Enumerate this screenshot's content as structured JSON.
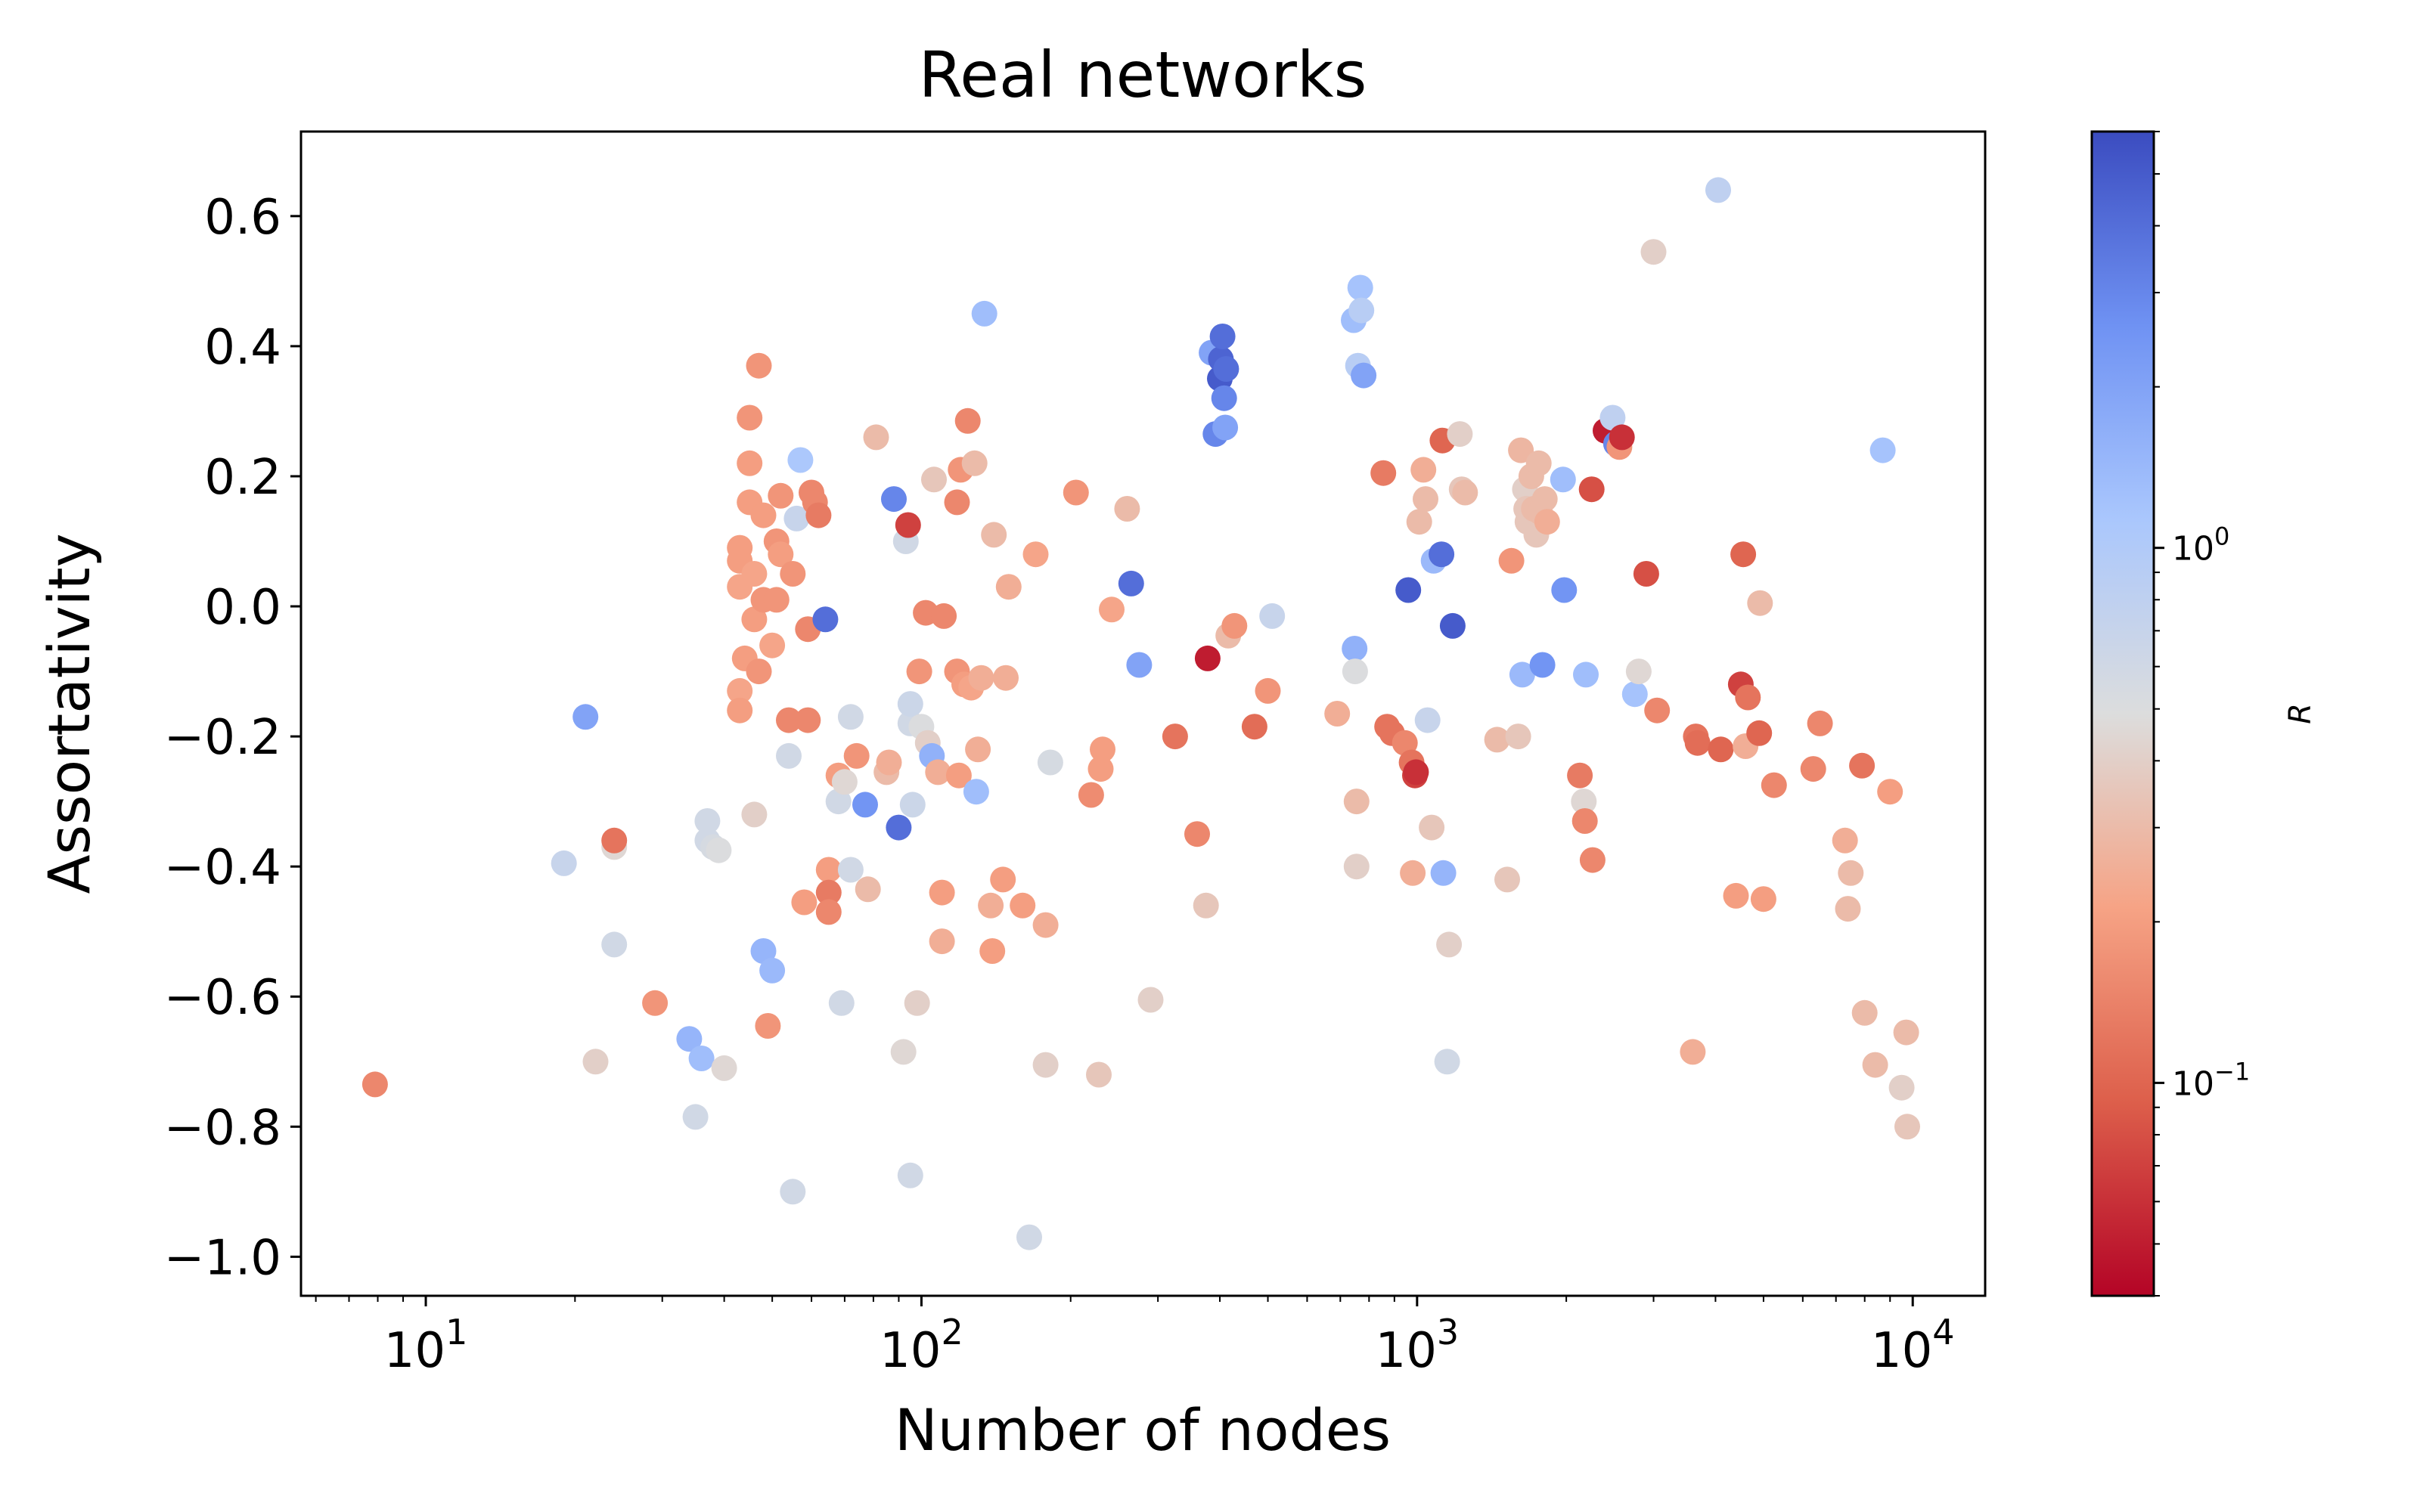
{
  "chart_data": {
    "type": "scatter",
    "title": "Real networks",
    "xlabel": "Number of nodes",
    "ylabel": "Assortativity",
    "x_scale": "log",
    "xlim": [
      5.6,
      14000
    ],
    "ylim": [
      -1.06,
      0.73
    ],
    "grid": false,
    "x_tick_labels": [
      {
        "value": 10,
        "base": "10",
        "exp": "1"
      },
      {
        "value": 100,
        "base": "10",
        "exp": "2"
      },
      {
        "value": 1000,
        "base": "10",
        "exp": "3"
      },
      {
        "value": 10000,
        "base": "10",
        "exp": "4"
      }
    ],
    "y_ticks": [
      0.6,
      0.4,
      0.2,
      0.0,
      -0.2,
      -0.4,
      -0.6,
      -0.8,
      -1.0
    ],
    "y_tick_labels": [
      "0.6",
      "0.4",
      "0.2",
      "0.0",
      "−0.2",
      "−0.4",
      "−0.6",
      "−0.8",
      "−1.0"
    ],
    "colorbar": {
      "label": "R",
      "scale": "log",
      "range": [
        0.04,
        6
      ],
      "colormap": "coolwarm",
      "colormap_stops": [
        "#b40426",
        "#dd5f4b",
        "#f6a385",
        "#dcdddd",
        "#aac7fd",
        "#6f92f3",
        "#3b4cc0"
      ],
      "tick_labels": [
        {
          "value": 1,
          "base": "10",
          "exp": "0"
        },
        {
          "value": 0.1,
          "base": "10",
          "exp": "−1"
        }
      ]
    },
    "points": [
      {
        "x": 7.9,
        "y": -0.735,
        "r": 0.15
      },
      {
        "x": 19,
        "y": -0.395,
        "r": 0.7
      },
      {
        "x": 21,
        "y": -0.17,
        "r": 2.0
      },
      {
        "x": 22,
        "y": -0.7,
        "r": 0.4
      },
      {
        "x": 24,
        "y": -0.52,
        "r": 0.6
      },
      {
        "x": 24,
        "y": -0.37,
        "r": 0.45
      },
      {
        "x": 24,
        "y": -0.36,
        "r": 0.12
      },
      {
        "x": 29,
        "y": -0.61,
        "r": 0.18
      },
      {
        "x": 34,
        "y": -0.665,
        "r": 1.5
      },
      {
        "x": 35,
        "y": -0.785,
        "r": 0.6
      },
      {
        "x": 36,
        "y": -0.695,
        "r": 1.3
      },
      {
        "x": 37,
        "y": -0.33,
        "r": 0.6
      },
      {
        "x": 37,
        "y": -0.36,
        "r": 0.6
      },
      {
        "x": 38,
        "y": -0.37,
        "r": 0.55
      },
      {
        "x": 39,
        "y": -0.375,
        "r": 0.5
      },
      {
        "x": 40,
        "y": -0.71,
        "r": 0.45
      },
      {
        "x": 43,
        "y": 0.09,
        "r": 0.2
      },
      {
        "x": 43,
        "y": 0.07,
        "r": 0.2
      },
      {
        "x": 43,
        "y": 0.03,
        "r": 0.22
      },
      {
        "x": 43,
        "y": -0.13,
        "r": 0.22
      },
      {
        "x": 43,
        "y": -0.16,
        "r": 0.2
      },
      {
        "x": 44,
        "y": -0.08,
        "r": 0.2
      },
      {
        "x": 45,
        "y": 0.29,
        "r": 0.18
      },
      {
        "x": 45,
        "y": 0.22,
        "r": 0.2
      },
      {
        "x": 45,
        "y": 0.16,
        "r": 0.2
      },
      {
        "x": 46,
        "y": 0.05,
        "r": 0.22
      },
      {
        "x": 46,
        "y": -0.02,
        "r": 0.2
      },
      {
        "x": 46,
        "y": -0.32,
        "r": 0.4
      },
      {
        "x": 47,
        "y": 0.37,
        "r": 0.18
      },
      {
        "x": 47,
        "y": -0.1,
        "r": 0.18
      },
      {
        "x": 48,
        "y": 0.14,
        "r": 0.2
      },
      {
        "x": 48,
        "y": 0.01,
        "r": 0.18
      },
      {
        "x": 48,
        "y": -0.53,
        "r": 1.5
      },
      {
        "x": 49,
        "y": -0.645,
        "r": 0.18
      },
      {
        "x": 50,
        "y": -0.56,
        "r": 1.4
      },
      {
        "x": 50,
        "y": -0.06,
        "r": 0.22
      },
      {
        "x": 51,
        "y": 0.1,
        "r": 0.18
      },
      {
        "x": 51,
        "y": 0.01,
        "r": 0.18
      },
      {
        "x": 52,
        "y": 0.17,
        "r": 0.18
      },
      {
        "x": 52,
        "y": 0.08,
        "r": 0.2
      },
      {
        "x": 54,
        "y": -0.175,
        "r": 0.15
      },
      {
        "x": 54,
        "y": -0.23,
        "r": 0.6
      },
      {
        "x": 55,
        "y": -0.9,
        "r": 0.6
      },
      {
        "x": 55,
        "y": 0.05,
        "r": 0.18
      },
      {
        "x": 56,
        "y": 0.135,
        "r": 0.7
      },
      {
        "x": 57,
        "y": 0.225,
        "r": 1.1
      },
      {
        "x": 58,
        "y": -0.455,
        "r": 0.2
      },
      {
        "x": 59,
        "y": -0.175,
        "r": 0.15
      },
      {
        "x": 59,
        "y": -0.035,
        "r": 0.15
      },
      {
        "x": 60,
        "y": 0.175,
        "r": 0.15
      },
      {
        "x": 61,
        "y": 0.16,
        "r": 0.15
      },
      {
        "x": 62,
        "y": 0.14,
        "r": 0.13
      },
      {
        "x": 64,
        "y": -0.02,
        "r": 4.0
      },
      {
        "x": 65,
        "y": -0.405,
        "r": 0.2
      },
      {
        "x": 65,
        "y": -0.44,
        "r": 0.13
      },
      {
        "x": 65,
        "y": -0.47,
        "r": 0.15
      },
      {
        "x": 68,
        "y": -0.26,
        "r": 0.2
      },
      {
        "x": 68,
        "y": -0.3,
        "r": 0.6
      },
      {
        "x": 69,
        "y": -0.61,
        "r": 0.6
      },
      {
        "x": 70,
        "y": -0.27,
        "r": 0.45
      },
      {
        "x": 72,
        "y": -0.17,
        "r": 0.6
      },
      {
        "x": 72,
        "y": -0.405,
        "r": 0.6
      },
      {
        "x": 74,
        "y": -0.23,
        "r": 0.18
      },
      {
        "x": 77,
        "y": -0.305,
        "r": 2.5
      },
      {
        "x": 78,
        "y": -0.435,
        "r": 0.3
      },
      {
        "x": 81,
        "y": 0.26,
        "r": 0.3
      },
      {
        "x": 85,
        "y": -0.255,
        "r": 0.3
      },
      {
        "x": 86,
        "y": -0.24,
        "r": 0.25
      },
      {
        "x": 88,
        "y": 0.165,
        "r": 3.0
      },
      {
        "x": 90,
        "y": -0.34,
        "r": 4.0
      },
      {
        "x": 92,
        "y": -0.685,
        "r": 0.45
      },
      {
        "x": 93,
        "y": 0.1,
        "r": 0.6
      },
      {
        "x": 94,
        "y": 0.125,
        "r": 0.07
      },
      {
        "x": 95,
        "y": -0.18,
        "r": 0.6
      },
      {
        "x": 95,
        "y": -0.15,
        "r": 0.65
      },
      {
        "x": 95,
        "y": -0.875,
        "r": 0.6
      },
      {
        "x": 96,
        "y": -0.305,
        "r": 0.65
      },
      {
        "x": 98,
        "y": -0.61,
        "r": 0.4
      },
      {
        "x": 99,
        "y": -0.1,
        "r": 0.18
      },
      {
        "x": 100,
        "y": -0.185,
        "r": 0.5
      },
      {
        "x": 102,
        "y": -0.01,
        "r": 0.15
      },
      {
        "x": 103,
        "y": -0.21,
        "r": 0.4
      },
      {
        "x": 105,
        "y": -0.23,
        "r": 1.6
      },
      {
        "x": 106,
        "y": 0.195,
        "r": 0.35
      },
      {
        "x": 108,
        "y": -0.255,
        "r": 0.25
      },
      {
        "x": 110,
        "y": -0.44,
        "r": 0.2
      },
      {
        "x": 110,
        "y": -0.515,
        "r": 0.25
      },
      {
        "x": 111,
        "y": -0.015,
        "r": 0.15
      },
      {
        "x": 118,
        "y": 0.16,
        "r": 0.15
      },
      {
        "x": 118,
        "y": -0.1,
        "r": 0.18
      },
      {
        "x": 119,
        "y": -0.26,
        "r": 0.2
      },
      {
        "x": 120,
        "y": 0.21,
        "r": 0.18
      },
      {
        "x": 122,
        "y": -0.12,
        "r": 0.2
      },
      {
        "x": 124,
        "y": 0.285,
        "r": 0.15
      },
      {
        "x": 126,
        "y": -0.125,
        "r": 0.22
      },
      {
        "x": 128,
        "y": 0.22,
        "r": 0.3
      },
      {
        "x": 129,
        "y": -0.285,
        "r": 1.3
      },
      {
        "x": 130,
        "y": -0.22,
        "r": 0.25
      },
      {
        "x": 132,
        "y": -0.11,
        "r": 0.25
      },
      {
        "x": 134,
        "y": 0.45,
        "r": 1.3
      },
      {
        "x": 138,
        "y": -0.46,
        "r": 0.25
      },
      {
        "x": 139,
        "y": -0.53,
        "r": 0.2
      },
      {
        "x": 140,
        "y": 0.11,
        "r": 0.3
      },
      {
        "x": 146,
        "y": -0.42,
        "r": 0.2
      },
      {
        "x": 148,
        "y": -0.11,
        "r": 0.25
      },
      {
        "x": 150,
        "y": 0.03,
        "r": 0.25
      },
      {
        "x": 160,
        "y": -0.46,
        "r": 0.2
      },
      {
        "x": 165,
        "y": -0.97,
        "r": 0.6
      },
      {
        "x": 170,
        "y": 0.08,
        "r": 0.22
      },
      {
        "x": 178,
        "y": -0.49,
        "r": 0.25
      },
      {
        "x": 178,
        "y": -0.705,
        "r": 0.4
      },
      {
        "x": 182,
        "y": -0.24,
        "r": 0.55
      },
      {
        "x": 205,
        "y": 0.175,
        "r": 0.18
      },
      {
        "x": 220,
        "y": -0.29,
        "r": 0.16
      },
      {
        "x": 228,
        "y": -0.72,
        "r": 0.35
      },
      {
        "x": 230,
        "y": -0.25,
        "r": 0.2
      },
      {
        "x": 232,
        "y": -0.22,
        "r": 0.2
      },
      {
        "x": 242,
        "y": -0.005,
        "r": 0.22
      },
      {
        "x": 260,
        "y": 0.15,
        "r": 0.3
      },
      {
        "x": 265,
        "y": 0.035,
        "r": 4.0
      },
      {
        "x": 275,
        "y": -0.09,
        "r": 2.0
      },
      {
        "x": 290,
        "y": -0.605,
        "r": 0.4
      },
      {
        "x": 325,
        "y": -0.2,
        "r": 0.12
      },
      {
        "x": 360,
        "y": -0.35,
        "r": 0.15
      },
      {
        "x": 375,
        "y": -0.46,
        "r": 0.35
      },
      {
        "x": 378,
        "y": -0.08,
        "r": 0.05
      },
      {
        "x": 385,
        "y": 0.39,
        "r": 2.0
      },
      {
        "x": 392,
        "y": 0.265,
        "r": 3.0
      },
      {
        "x": 400,
        "y": 0.35,
        "r": 5.0
      },
      {
        "x": 402,
        "y": 0.38,
        "r": 4.5
      },
      {
        "x": 405,
        "y": 0.415,
        "r": 4.0
      },
      {
        "x": 408,
        "y": 0.32,
        "r": 3.0
      },
      {
        "x": 410,
        "y": 0.275,
        "r": 2.0
      },
      {
        "x": 412,
        "y": 0.365,
        "r": 4.0
      },
      {
        "x": 416,
        "y": -0.045,
        "r": 0.3
      },
      {
        "x": 428,
        "y": -0.03,
        "r": 0.18
      },
      {
        "x": 470,
        "y": -0.185,
        "r": 0.11
      },
      {
        "x": 500,
        "y": -0.13,
        "r": 0.18
      },
      {
        "x": 510,
        "y": -0.015,
        "r": 0.7
      },
      {
        "x": 690,
        "y": -0.165,
        "r": 0.25
      },
      {
        "x": 745,
        "y": 0.44,
        "r": 1.3
      },
      {
        "x": 748,
        "y": -0.065,
        "r": 1.6
      },
      {
        "x": 750,
        "y": -0.1,
        "r": 0.5
      },
      {
        "x": 755,
        "y": -0.3,
        "r": 0.3
      },
      {
        "x": 755,
        "y": -0.4,
        "r": 0.4
      },
      {
        "x": 760,
        "y": 0.37,
        "r": 0.9
      },
      {
        "x": 768,
        "y": 0.49,
        "r": 1.2
      },
      {
        "x": 772,
        "y": 0.455,
        "r": 0.9
      },
      {
        "x": 780,
        "y": 0.355,
        "r": 2.0
      },
      {
        "x": 855,
        "y": 0.205,
        "r": 0.13
      },
      {
        "x": 870,
        "y": -0.185,
        "r": 0.12
      },
      {
        "x": 890,
        "y": -0.195,
        "r": 0.12
      },
      {
        "x": 945,
        "y": -0.21,
        "r": 0.15
      },
      {
        "x": 960,
        "y": 0.025,
        "r": 5.0
      },
      {
        "x": 975,
        "y": -0.24,
        "r": 0.12
      },
      {
        "x": 980,
        "y": -0.41,
        "r": 0.25
      },
      {
        "x": 990,
        "y": -0.26,
        "r": 0.07
      },
      {
        "x": 995,
        "y": -0.255,
        "r": 0.06
      },
      {
        "x": 1010,
        "y": 0.13,
        "r": 0.3
      },
      {
        "x": 1030,
        "y": 0.21,
        "r": 0.25
      },
      {
        "x": 1040,
        "y": 0.165,
        "r": 0.3
      },
      {
        "x": 1050,
        "y": -0.175,
        "r": 0.7
      },
      {
        "x": 1070,
        "y": -0.34,
        "r": 0.35
      },
      {
        "x": 1080,
        "y": 0.07,
        "r": 1.4
      },
      {
        "x": 1120,
        "y": 0.08,
        "r": 4.0
      },
      {
        "x": 1125,
        "y": 0.255,
        "r": 0.1
      },
      {
        "x": 1130,
        "y": -0.41,
        "r": 1.5
      },
      {
        "x": 1150,
        "y": -0.7,
        "r": 0.6
      },
      {
        "x": 1160,
        "y": -0.52,
        "r": 0.4
      },
      {
        "x": 1180,
        "y": -0.03,
        "r": 5.0
      },
      {
        "x": 1220,
        "y": 0.265,
        "r": 0.4
      },
      {
        "x": 1230,
        "y": 0.18,
        "r": 0.35
      },
      {
        "x": 1250,
        "y": 0.175,
        "r": 0.3
      },
      {
        "x": 1450,
        "y": -0.205,
        "r": 0.3
      },
      {
        "x": 1520,
        "y": -0.42,
        "r": 0.35
      },
      {
        "x": 1550,
        "y": 0.07,
        "r": 0.18
      },
      {
        "x": 1600,
        "y": -0.2,
        "r": 0.35
      },
      {
        "x": 1620,
        "y": 0.24,
        "r": 0.28
      },
      {
        "x": 1630,
        "y": -0.105,
        "r": 1.4
      },
      {
        "x": 1650,
        "y": 0.18,
        "r": 0.4
      },
      {
        "x": 1660,
        "y": 0.15,
        "r": 0.35
      },
      {
        "x": 1670,
        "y": 0.13,
        "r": 0.35
      },
      {
        "x": 1700,
        "y": 0.2,
        "r": 0.3
      },
      {
        "x": 1720,
        "y": 0.15,
        "r": 0.3
      },
      {
        "x": 1740,
        "y": 0.11,
        "r": 0.35
      },
      {
        "x": 1760,
        "y": 0.22,
        "r": 0.3
      },
      {
        "x": 1770,
        "y": 0.145,
        "r": 0.3
      },
      {
        "x": 1790,
        "y": -0.09,
        "r": 2.5
      },
      {
        "x": 1810,
        "y": 0.165,
        "r": 0.3
      },
      {
        "x": 1830,
        "y": 0.13,
        "r": 0.25
      },
      {
        "x": 1970,
        "y": 0.195,
        "r": 1.3
      },
      {
        "x": 1980,
        "y": 0.025,
        "r": 2.5
      },
      {
        "x": 2130,
        "y": -0.26,
        "r": 0.13
      },
      {
        "x": 2170,
        "y": -0.3,
        "r": 0.45
      },
      {
        "x": 2180,
        "y": -0.33,
        "r": 0.15
      },
      {
        "x": 2190,
        "y": -0.105,
        "r": 1.3
      },
      {
        "x": 2250,
        "y": 0.18,
        "r": 0.08
      },
      {
        "x": 2260,
        "y": -0.39,
        "r": 0.15
      },
      {
        "x": 2400,
        "y": 0.27,
        "r": 0.05
      },
      {
        "x": 2480,
        "y": 0.29,
        "r": 0.8
      },
      {
        "x": 2520,
        "y": 0.25,
        "r": 3.0
      },
      {
        "x": 2560,
        "y": 0.245,
        "r": 0.18
      },
      {
        "x": 2590,
        "y": 0.26,
        "r": 0.06
      },
      {
        "x": 2750,
        "y": -0.135,
        "r": 1.2
      },
      {
        "x": 2800,
        "y": -0.1,
        "r": 0.45
      },
      {
        "x": 2900,
        "y": 0.05,
        "r": 0.08
      },
      {
        "x": 3000,
        "y": 0.545,
        "r": 0.4
      },
      {
        "x": 3050,
        "y": -0.16,
        "r": 0.15
      },
      {
        "x": 3600,
        "y": -0.685,
        "r": 0.25
      },
      {
        "x": 3650,
        "y": -0.2,
        "r": 0.12
      },
      {
        "x": 3680,
        "y": -0.21,
        "r": 0.11
      },
      {
        "x": 4050,
        "y": 0.64,
        "r": 0.8
      },
      {
        "x": 4100,
        "y": -0.22,
        "r": 0.1
      },
      {
        "x": 4400,
        "y": -0.445,
        "r": 0.2
      },
      {
        "x": 4500,
        "y": -0.12,
        "r": 0.07
      },
      {
        "x": 4550,
        "y": 0.08,
        "r": 0.1
      },
      {
        "x": 4600,
        "y": -0.215,
        "r": 0.25
      },
      {
        "x": 4650,
        "y": -0.14,
        "r": 0.12
      },
      {
        "x": 4900,
        "y": -0.195,
        "r": 0.1
      },
      {
        "x": 4920,
        "y": 0.005,
        "r": 0.3
      },
      {
        "x": 5000,
        "y": -0.45,
        "r": 0.2
      },
      {
        "x": 5250,
        "y": -0.275,
        "r": 0.15
      },
      {
        "x": 6300,
        "y": -0.25,
        "r": 0.15
      },
      {
        "x": 6500,
        "y": -0.18,
        "r": 0.15
      },
      {
        "x": 7300,
        "y": -0.36,
        "r": 0.25
      },
      {
        "x": 7400,
        "y": -0.465,
        "r": 0.3
      },
      {
        "x": 7500,
        "y": -0.41,
        "r": 0.3
      },
      {
        "x": 7900,
        "y": -0.245,
        "r": 0.12
      },
      {
        "x": 8000,
        "y": -0.625,
        "r": 0.3
      },
      {
        "x": 8400,
        "y": -0.705,
        "r": 0.3
      },
      {
        "x": 8700,
        "y": 0.24,
        "r": 1.2
      },
      {
        "x": 9000,
        "y": -0.285,
        "r": 0.2
      },
      {
        "x": 9500,
        "y": -0.74,
        "r": 0.4
      },
      {
        "x": 9700,
        "y": -0.655,
        "r": 0.3
      },
      {
        "x": 9750,
        "y": -0.8,
        "r": 0.35
      }
    ]
  }
}
